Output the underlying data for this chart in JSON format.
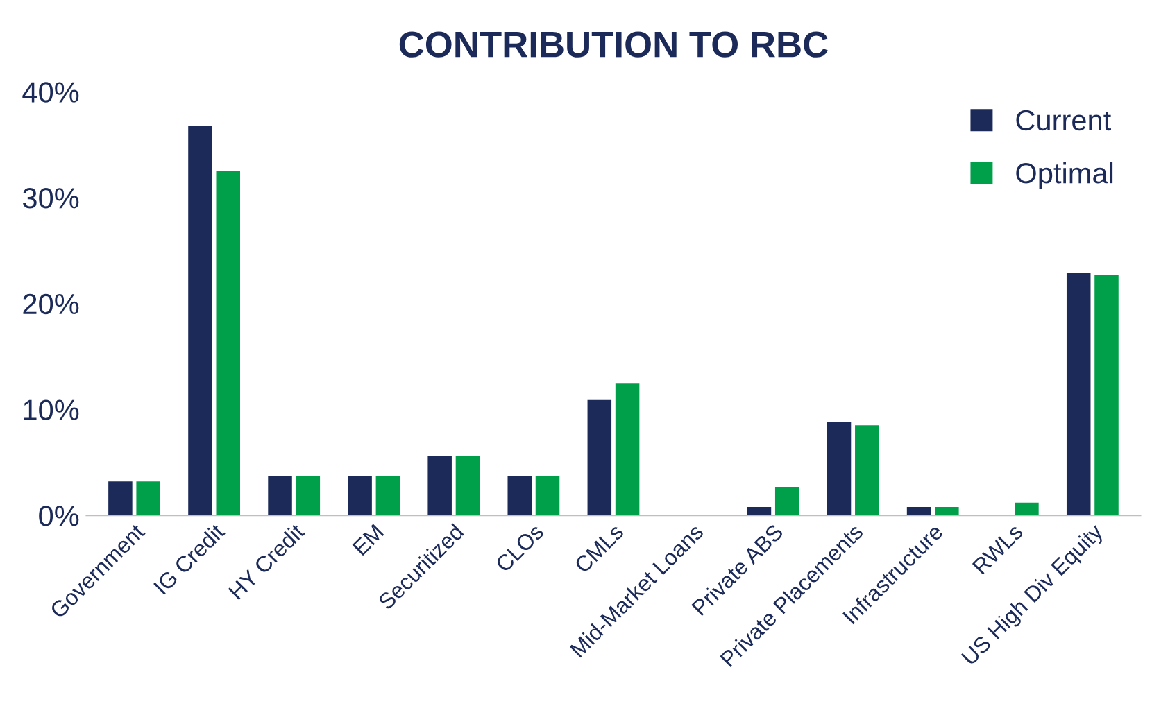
{
  "chart_data": {
    "type": "bar",
    "title": "CONTRIBUTION TO RBC",
    "categories": [
      "Government",
      "IG Credit",
      "HY Credit",
      "EM",
      "Securitized",
      "CLOs",
      "CMLs",
      "Mid-Market Loans",
      "Private ABS",
      "Private Placements",
      "Infrastructure",
      "RWLs",
      "US High Div Equity"
    ],
    "series": [
      {
        "name": "Current",
        "color": "#1b2a58",
        "values": [
          3.2,
          36.8,
          3.7,
          3.7,
          5.6,
          3.7,
          10.9,
          null,
          0.8,
          8.8,
          0.8,
          null,
          22.9
        ]
      },
      {
        "name": "Optimal",
        "color": "#00a04b",
        "values": [
          3.2,
          32.5,
          3.7,
          3.7,
          5.6,
          3.7,
          12.5,
          null,
          2.7,
          8.5,
          0.8,
          1.2,
          22.7
        ]
      }
    ],
    "ylim": [
      0,
      40
    ],
    "yticks": [
      {
        "value": 0,
        "label": "0%"
      },
      {
        "value": 10,
        "label": "10%"
      },
      {
        "value": 20,
        "label": "20%"
      },
      {
        "value": 30,
        "label": "30%"
      },
      {
        "value": 40,
        "label": "40%"
      }
    ],
    "grid": false,
    "legend": "top right"
  }
}
